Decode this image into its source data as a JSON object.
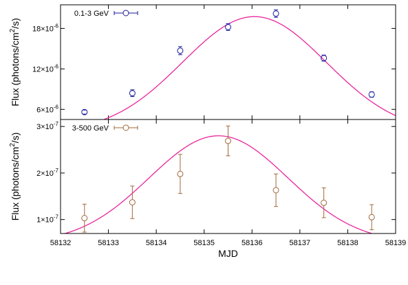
{
  "chart_data": [
    {
      "type": "scatter",
      "ylabel": "Flux (photons/cm²/s)",
      "ylabel_parts": [
        "Flux (photons/cm",
        "2",
        "/s)"
      ],
      "xlim": [
        58132,
        58139
      ],
      "ylim": [
        4.5e-06,
        2.15e-05
      ],
      "yticks": [
        6e-06,
        1.2e-05,
        1.8e-05
      ],
      "ytick_labels": [
        {
          "m": "6×10",
          "e": "-6"
        },
        {
          "m": "12×10",
          "e": "-6"
        },
        {
          "m": "18×10",
          "e": "-6"
        }
      ],
      "legend_position": "top-left",
      "series": [
        {
          "name": "0.1-3 GeV",
          "color": "#1a1a9c",
          "x": [
            58132.5,
            58133.5,
            58134.5,
            58135.5,
            58136.5,
            58137.5,
            58138.5
          ],
          "y": [
            5.6e-06,
            8.4e-06,
            1.47e-05,
            1.82e-05,
            2.02e-05,
            1.36e-05,
            8.2e-06
          ],
          "yerr": [
            3e-07,
            5e-07,
            6e-07,
            5e-07,
            5.5e-07,
            4.5e-07,
            4e-07
          ]
        }
      ],
      "fit": {
        "color": "#e8259b",
        "amplitude": 1.975e-05,
        "center": 58136.05,
        "sigma": 1.5,
        "baseline": 2.6e-06
      }
    },
    {
      "type": "scatter",
      "xlabel": "MJD",
      "ylabel": "Flux (photons/cm²/s)",
      "ylabel_parts": [
        "Flux (photons/cm",
        "2",
        "/s)"
      ],
      "xlim": [
        58132,
        58139
      ],
      "ylim": [
        7e-08,
        3.15e-07
      ],
      "xticks": [
        58132,
        58133,
        58134,
        58135,
        58136,
        58137,
        58138,
        58139
      ],
      "yticks": [
        1e-07,
        2e-07,
        3e-07
      ],
      "ytick_labels": [
        {
          "m": "1×10",
          "e": "-7"
        },
        {
          "m": "2×10",
          "e": "-7"
        },
        {
          "m": "3×10",
          "e": "-7"
        }
      ],
      "legend_position": "top-left",
      "series": [
        {
          "name": "3-500 GeV",
          "color": "#a0683a",
          "x": [
            58132.5,
            58133.5,
            58134.5,
            58135.5,
            58136.5,
            58137.5,
            58138.5
          ],
          "y": [
            1.03e-07,
            1.37e-07,
            1.98e-07,
            2.69e-07,
            1.63e-07,
            1.36e-07,
            1.05e-07
          ],
          "yerr": [
            3e-08,
            3.5e-08,
            4.2e-08,
            3.2e-08,
            3.5e-08,
            3.2e-08,
            2.7e-08
          ]
        }
      ],
      "fit": {
        "color": "#e8259b",
        "amplitude": 2.8e-07,
        "center": 58135.3,
        "sigma": 1.45,
        "baseline": 5e-08
      }
    }
  ]
}
